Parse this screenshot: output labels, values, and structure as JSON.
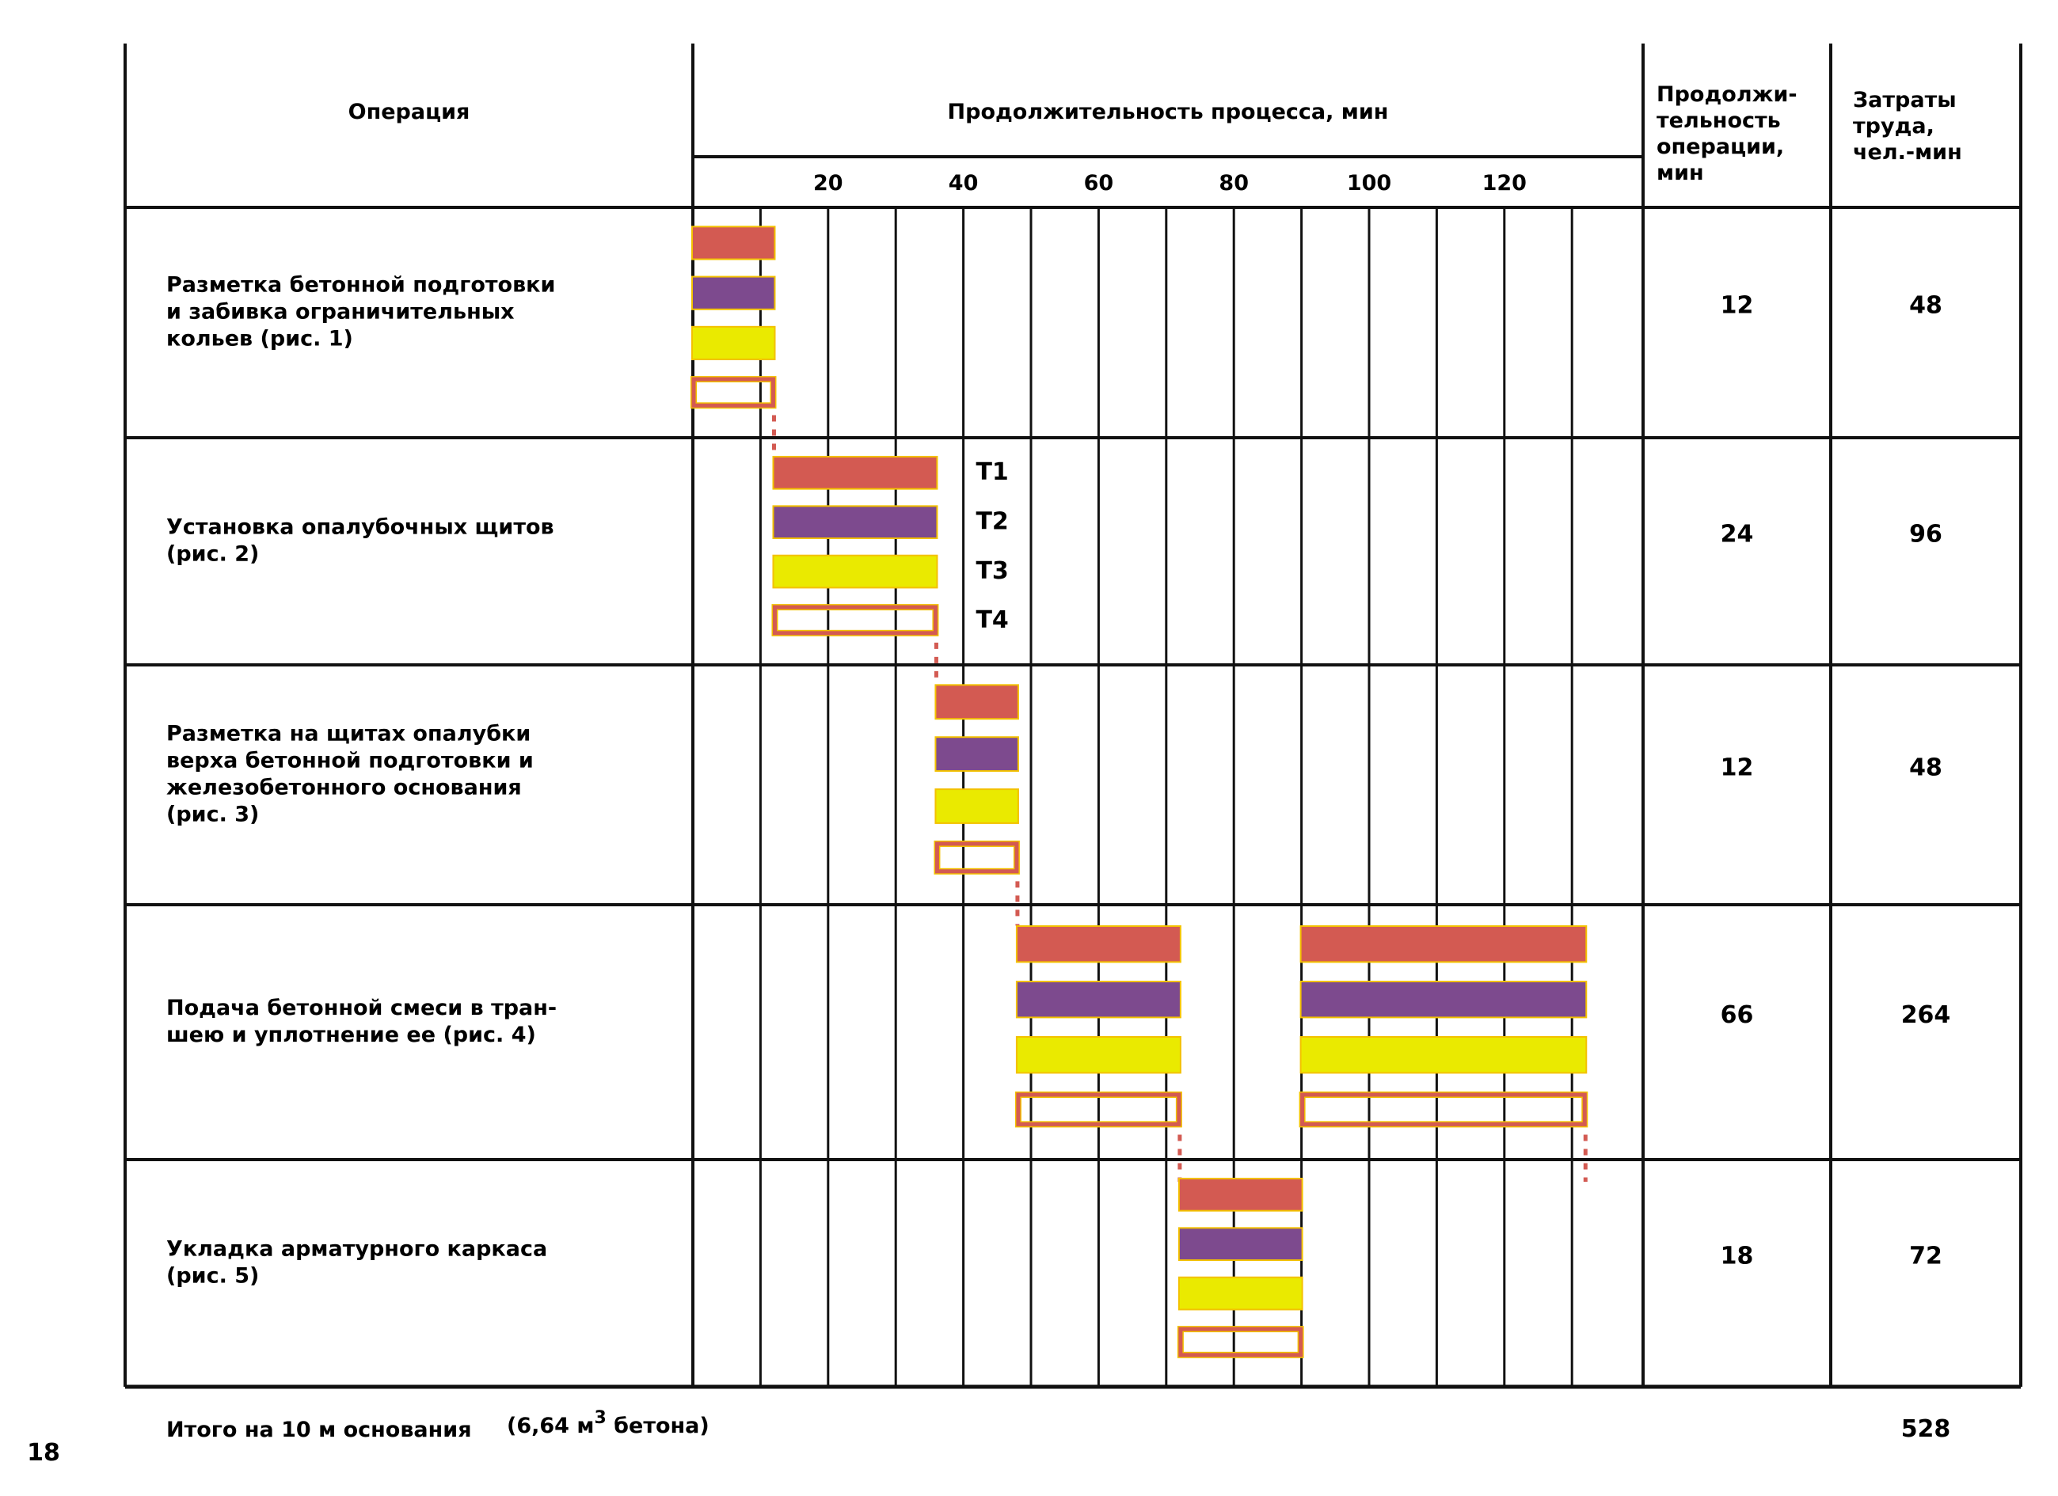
{
  "header": {
    "operation": "Операция",
    "duration_process": "Продолжительность процесса, мин",
    "duration_op": [
      "Продолжи-",
      "тельность",
      "операции,",
      "мин"
    ],
    "labor": [
      "Затраты",
      "труда,",
      "чел.-мин"
    ]
  },
  "footer": {
    "total_label": "Итого на 10 м основания",
    "total_note_prefix": "(6,64 м",
    "total_note_sup": "3",
    "total_note_suffix": " бетона)",
    "total_labor": "528",
    "page_number": "18"
  },
  "colors": {
    "T1": "#d35a52",
    "T2": "#7d4a8e",
    "T3": "#eaea00",
    "T4": "#d35a52",
    "outline_glow": "#f3c100"
  },
  "chart_data": {
    "type": "bar",
    "title": "",
    "xlabel": "Продолжительность процесса, мин",
    "x_ticks": [
      20,
      40,
      60,
      80,
      100,
      120
    ],
    "xlim": [
      0,
      140
    ],
    "grid_step": 10,
    "crews": [
      "T1",
      "T2",
      "T3",
      "T4"
    ],
    "operations": [
      {
        "name": [
          "Разметка бетонной подготовки",
          "и забивка ограничительных",
          "кольев  (рис. 1)"
        ],
        "duration": "12",
        "labor": "48",
        "intervals": [
          [
            0,
            12
          ]
        ]
      },
      {
        "name": [
          "Установка опалубочных щитов",
          "(рис. 2)"
        ],
        "duration": "24",
        "labor": "96",
        "intervals": [
          [
            12,
            36
          ]
        ]
      },
      {
        "name": [
          "Разметка на щитах опалубки",
          "верха бетонной подготовки и",
          "железобетонного основания",
          "(рис. 3)"
        ],
        "duration": "12",
        "labor": "48",
        "intervals": [
          [
            36,
            48
          ]
        ]
      },
      {
        "name": [
          "Подача бетонной смеси в тран-",
          "шею и уплотнение ее  (рис. 4)"
        ],
        "duration": "66",
        "labor": "264",
        "intervals": [
          [
            48,
            72
          ],
          [
            90,
            132
          ]
        ]
      },
      {
        "name": [
          "Укладка арматурного каркаса",
          "(рис. 5)"
        ],
        "duration": "18",
        "labor": "72",
        "intervals": [
          [
            72,
            90
          ]
        ]
      }
    ]
  }
}
